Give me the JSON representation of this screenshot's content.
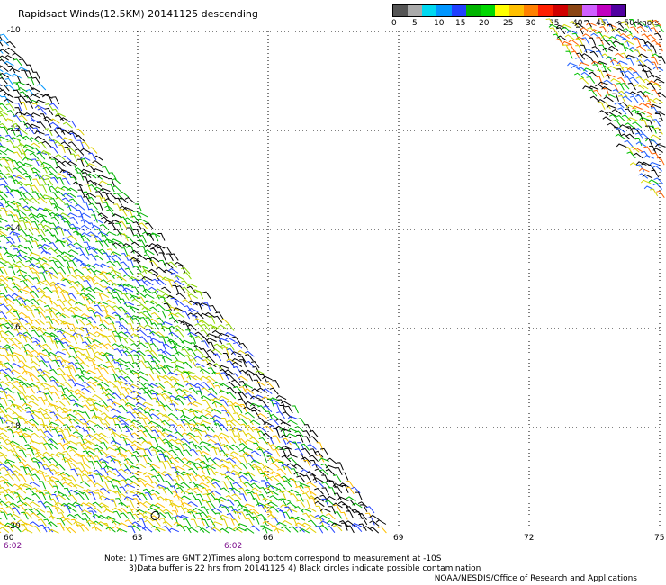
{
  "title": "Rapidsact Winds(12.5KM) 20141125 descending",
  "legend": {
    "labels": [
      "0",
      "5",
      "10",
      "15",
      "20",
      "25",
      "30",
      "35",
      "40",
      "45",
      ">50 knots"
    ],
    "colors": [
      "#555555",
      "#aaaaaa",
      "#00d8f0",
      "#0096ff",
      "#2040ff",
      "#00b400",
      "#00d800",
      "#ffff00",
      "#ffc000",
      "#ff8000",
      "#ff2000",
      "#d00000",
      "#8b4513",
      "#d060ff",
      "#c000c0",
      "#5000a0"
    ]
  },
  "map": {
    "lat_labels": [
      "-10",
      "-12",
      "-14",
      "-16",
      "-18",
      "-20"
    ],
    "lon_labels": [
      "60",
      "63",
      "66",
      "69",
      "72",
      "75"
    ],
    "time_labels": [
      "6:02",
      "6:02"
    ]
  },
  "notes": {
    "line1": "Note: 1) Times are GMT 2)Times along bottom correspond to measurement at -10S",
    "line2": "3)Data buffer is 22 hrs from 20141125 4) Black circles indicate possible contamination"
  },
  "credit": "NOAA/NESDIS/Office of Research and Applications"
}
